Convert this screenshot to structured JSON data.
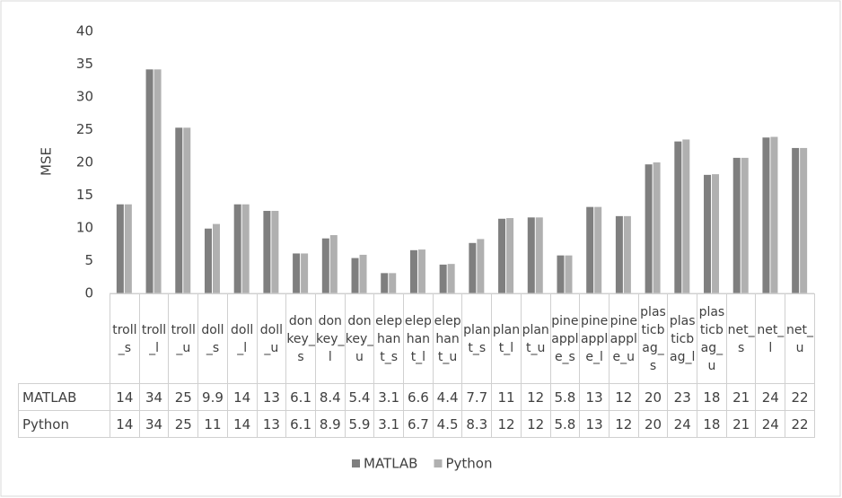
{
  "chart_data": {
    "type": "bar",
    "y_label": "MSE",
    "categories": [
      "troll_s",
      "troll_l",
      "troll_u",
      "doll_s",
      "doll_l",
      "doll_u",
      "donkey_s",
      "donkey_l",
      "donkey_u",
      "elephant_s",
      "elephant_l",
      "elephant_u",
      "plant_s",
      "plant_l",
      "plant_u",
      "pineapple_s",
      "pineapple_l",
      "pineapple_u",
      "plasticbag_s",
      "plasticbag_l",
      "plasticbag_u",
      "net_s",
      "net_l",
      "net_u"
    ],
    "series": [
      {
        "name": "MATLAB",
        "color": "#7f7f7f",
        "values": [
          13.6,
          34.2,
          25.3,
          9.9,
          13.6,
          12.6,
          6.1,
          8.4,
          5.4,
          3.1,
          6.6,
          4.4,
          7.7,
          11.4,
          11.6,
          5.8,
          13.2,
          11.8,
          19.7,
          23.2,
          18.1,
          20.7,
          23.8,
          22.2
        ],
        "value_labels": [
          "14",
          "34",
          "25",
          "9.9",
          "14",
          "13",
          "6.1",
          "8.4",
          "5.4",
          "3.1",
          "6.6",
          "4.4",
          "7.7",
          "11",
          "12",
          "5.8",
          "13",
          "12",
          "20",
          "23",
          "18",
          "21",
          "24",
          "22"
        ]
      },
      {
        "name": "Python",
        "color": "#b0b0b0",
        "values": [
          13.6,
          34.2,
          25.3,
          10.6,
          13.6,
          12.6,
          6.1,
          8.9,
          5.9,
          3.1,
          6.7,
          4.5,
          8.3,
          11.5,
          11.6,
          5.8,
          13.2,
          11.8,
          20.0,
          23.5,
          18.2,
          20.7,
          23.9,
          22.2
        ],
        "value_labels": [
          "14",
          "34",
          "25",
          "11",
          "14",
          "13",
          "6.1",
          "8.9",
          "5.9",
          "3.1",
          "6.7",
          "4.5",
          "8.3",
          "12",
          "12",
          "5.8",
          "13",
          "12",
          "20",
          "24",
          "18",
          "21",
          "24",
          "22"
        ]
      }
    ],
    "ylim": [
      0,
      40
    ],
    "yticks": [
      0,
      5,
      10,
      15,
      20,
      25,
      30,
      35,
      40
    ],
    "grid": false,
    "legend": "bottom"
  }
}
